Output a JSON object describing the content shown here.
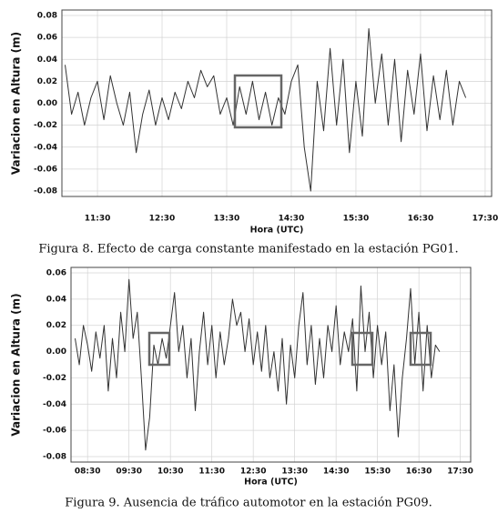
{
  "chart_data": [
    {
      "type": "line",
      "caption": "Figura 8. Efecto de carga constante manifestado en la estación PG01.",
      "x_label": "Hora (UTC)",
      "y_label": "Variacion en Altura (m)",
      "grid": true,
      "xlim": [
        10.95,
        17.6
      ],
      "ylim": [
        -0.08,
        0.08
      ],
      "xticks": [
        {
          "value": 11.5,
          "label": "11:30"
        },
        {
          "value": 12.5,
          "label": "12:30"
        },
        {
          "value": 13.5,
          "label": "13:30"
        },
        {
          "value": 14.5,
          "label": "14:30"
        },
        {
          "value": 15.5,
          "label": "15:30"
        },
        {
          "value": 16.5,
          "label": "16:30"
        },
        {
          "value": 17.5,
          "label": "17:30"
        }
      ],
      "yticks": [
        0.08,
        0.06,
        0.04,
        0.02,
        {
          "value": 0,
          "label": "0.00"
        },
        -0.02,
        -0.04,
        -0.06,
        -0.08
      ],
      "x": [
        11.0,
        11.1,
        11.2,
        11.3,
        11.4,
        11.5,
        11.6,
        11.7,
        11.8,
        11.9,
        12.0,
        12.1,
        12.2,
        12.3,
        12.4,
        12.5,
        12.6,
        12.7,
        12.8,
        12.9,
        13.0,
        13.1,
        13.2,
        13.3,
        13.4,
        13.5,
        13.6,
        13.7,
        13.8,
        13.9,
        14.0,
        14.1,
        14.2,
        14.3,
        14.4,
        14.5,
        14.6,
        14.7,
        14.8,
        14.9,
        15.0,
        15.1,
        15.2,
        15.3,
        15.4,
        15.5,
        15.6,
        15.7,
        15.8,
        15.9,
        16.0,
        16.1,
        16.2,
        16.3,
        16.4,
        16.5,
        16.6,
        16.7,
        16.8,
        16.9,
        17.0,
        17.1,
        17.2
      ],
      "series": [
        {
          "color": "#333333",
          "values": [
            0.035,
            -0.01,
            0.01,
            -0.02,
            0.005,
            0.02,
            -0.015,
            0.025,
            0.0,
            -0.02,
            0.01,
            -0.045,
            -0.01,
            0.012,
            -0.02,
            0.005,
            -0.015,
            0.01,
            -0.005,
            0.02,
            0.005,
            0.03,
            0.015,
            0.025,
            -0.01,
            0.005,
            -0.02,
            0.015,
            -0.01,
            0.02,
            -0.015,
            0.01,
            -0.02,
            0.005,
            -0.01,
            0.02,
            0.035,
            -0.04,
            -0.08,
            0.02,
            -0.025,
            0.05,
            -0.02,
            0.04,
            -0.045,
            0.02,
            -0.03,
            0.068,
            0.0,
            0.045,
            -0.02,
            0.04,
            -0.035,
            0.03,
            -0.01,
            0.045,
            -0.025,
            0.025,
            -0.015,
            0.03,
            -0.02,
            0.02,
            0.005
          ]
        }
      ]
    },
    {
      "type": "line",
      "caption": "Figura 9. Ausencia de tráfico automotor en la estación PG09.",
      "x_label": "Hora (UTC)",
      "y_label": "Variacion en Altura (m)",
      "grid": true,
      "xlim": [
        8.1,
        17.75
      ],
      "ylim": [
        -0.08,
        0.06
      ],
      "xticks": [
        {
          "value": 8.5,
          "label": "08:30"
        },
        {
          "value": 9.5,
          "label": "09:30"
        },
        {
          "value": 10.5,
          "label": "10:30"
        },
        {
          "value": 11.5,
          "label": "11:30"
        },
        {
          "value": 12.5,
          "label": "12:30"
        },
        {
          "value": 13.5,
          "label": "13:30"
        },
        {
          "value": 14.5,
          "label": "14:30"
        },
        {
          "value": 15.5,
          "label": "15:30"
        },
        {
          "value": 16.5,
          "label": "16:30"
        },
        {
          "value": 17.5,
          "label": "17:30"
        }
      ],
      "yticks": [
        0.06,
        0.04,
        0.02,
        {
          "value": 0,
          "label": "0.00"
        },
        -0.02,
        -0.04,
        -0.06,
        -0.08
      ],
      "x": [
        8.2,
        8.3,
        8.4,
        8.5,
        8.6,
        8.7,
        8.8,
        8.9,
        9.0,
        9.1,
        9.2,
        9.3,
        9.4,
        9.5,
        9.6,
        9.7,
        9.8,
        9.9,
        10.0,
        10.1,
        10.2,
        10.3,
        10.4,
        10.5,
        10.6,
        10.7,
        10.8,
        10.9,
        11.0,
        11.1,
        11.2,
        11.3,
        11.4,
        11.5,
        11.6,
        11.7,
        11.8,
        11.9,
        12.0,
        12.1,
        12.2,
        12.3,
        12.4,
        12.5,
        12.6,
        12.7,
        12.8,
        12.9,
        13.0,
        13.1,
        13.2,
        13.3,
        13.4,
        13.5,
        13.6,
        13.7,
        13.8,
        13.9,
        14.0,
        14.1,
        14.2,
        14.3,
        14.4,
        14.5,
        14.6,
        14.7,
        14.8,
        14.9,
        15.0,
        15.1,
        15.2,
        15.3,
        15.4,
        15.5,
        15.6,
        15.7,
        15.8,
        15.9,
        16.0,
        16.1,
        16.2,
        16.3,
        16.4,
        16.5,
        16.6,
        16.7,
        16.8,
        16.9,
        17.0
      ],
      "series": [
        {
          "color": "#333333",
          "values": [
            0.01,
            -0.01,
            0.02,
            0.005,
            -0.015,
            0.015,
            -0.005,
            0.02,
            -0.03,
            0.01,
            -0.02,
            0.03,
            0.0,
            0.055,
            0.01,
            0.03,
            -0.02,
            -0.075,
            -0.05,
            0.005,
            -0.01,
            0.01,
            -0.005,
            0.02,
            0.045,
            0.0,
            0.02,
            -0.02,
            0.01,
            -0.045,
            0.0,
            0.03,
            -0.01,
            0.02,
            -0.02,
            0.015,
            -0.01,
            0.01,
            0.04,
            0.02,
            0.03,
            0.0,
            0.025,
            -0.01,
            0.015,
            -0.015,
            0.02,
            -0.02,
            0.0,
            -0.03,
            0.01,
            -0.04,
            0.005,
            -0.02,
            0.02,
            0.045,
            -0.01,
            0.02,
            -0.025,
            0.01,
            -0.02,
            0.02,
            0.0,
            0.035,
            -0.01,
            0.015,
            0.0,
            0.025,
            -0.03,
            0.05,
            0.0,
            0.03,
            -0.02,
            0.02,
            -0.01,
            0.015,
            -0.045,
            -0.01,
            -0.065,
            -0.02,
            0.01,
            0.048,
            -0.01,
            0.03,
            -0.03,
            0.02,
            -0.02,
            0.005,
            0.0
          ]
        }
      ]
    }
  ]
}
